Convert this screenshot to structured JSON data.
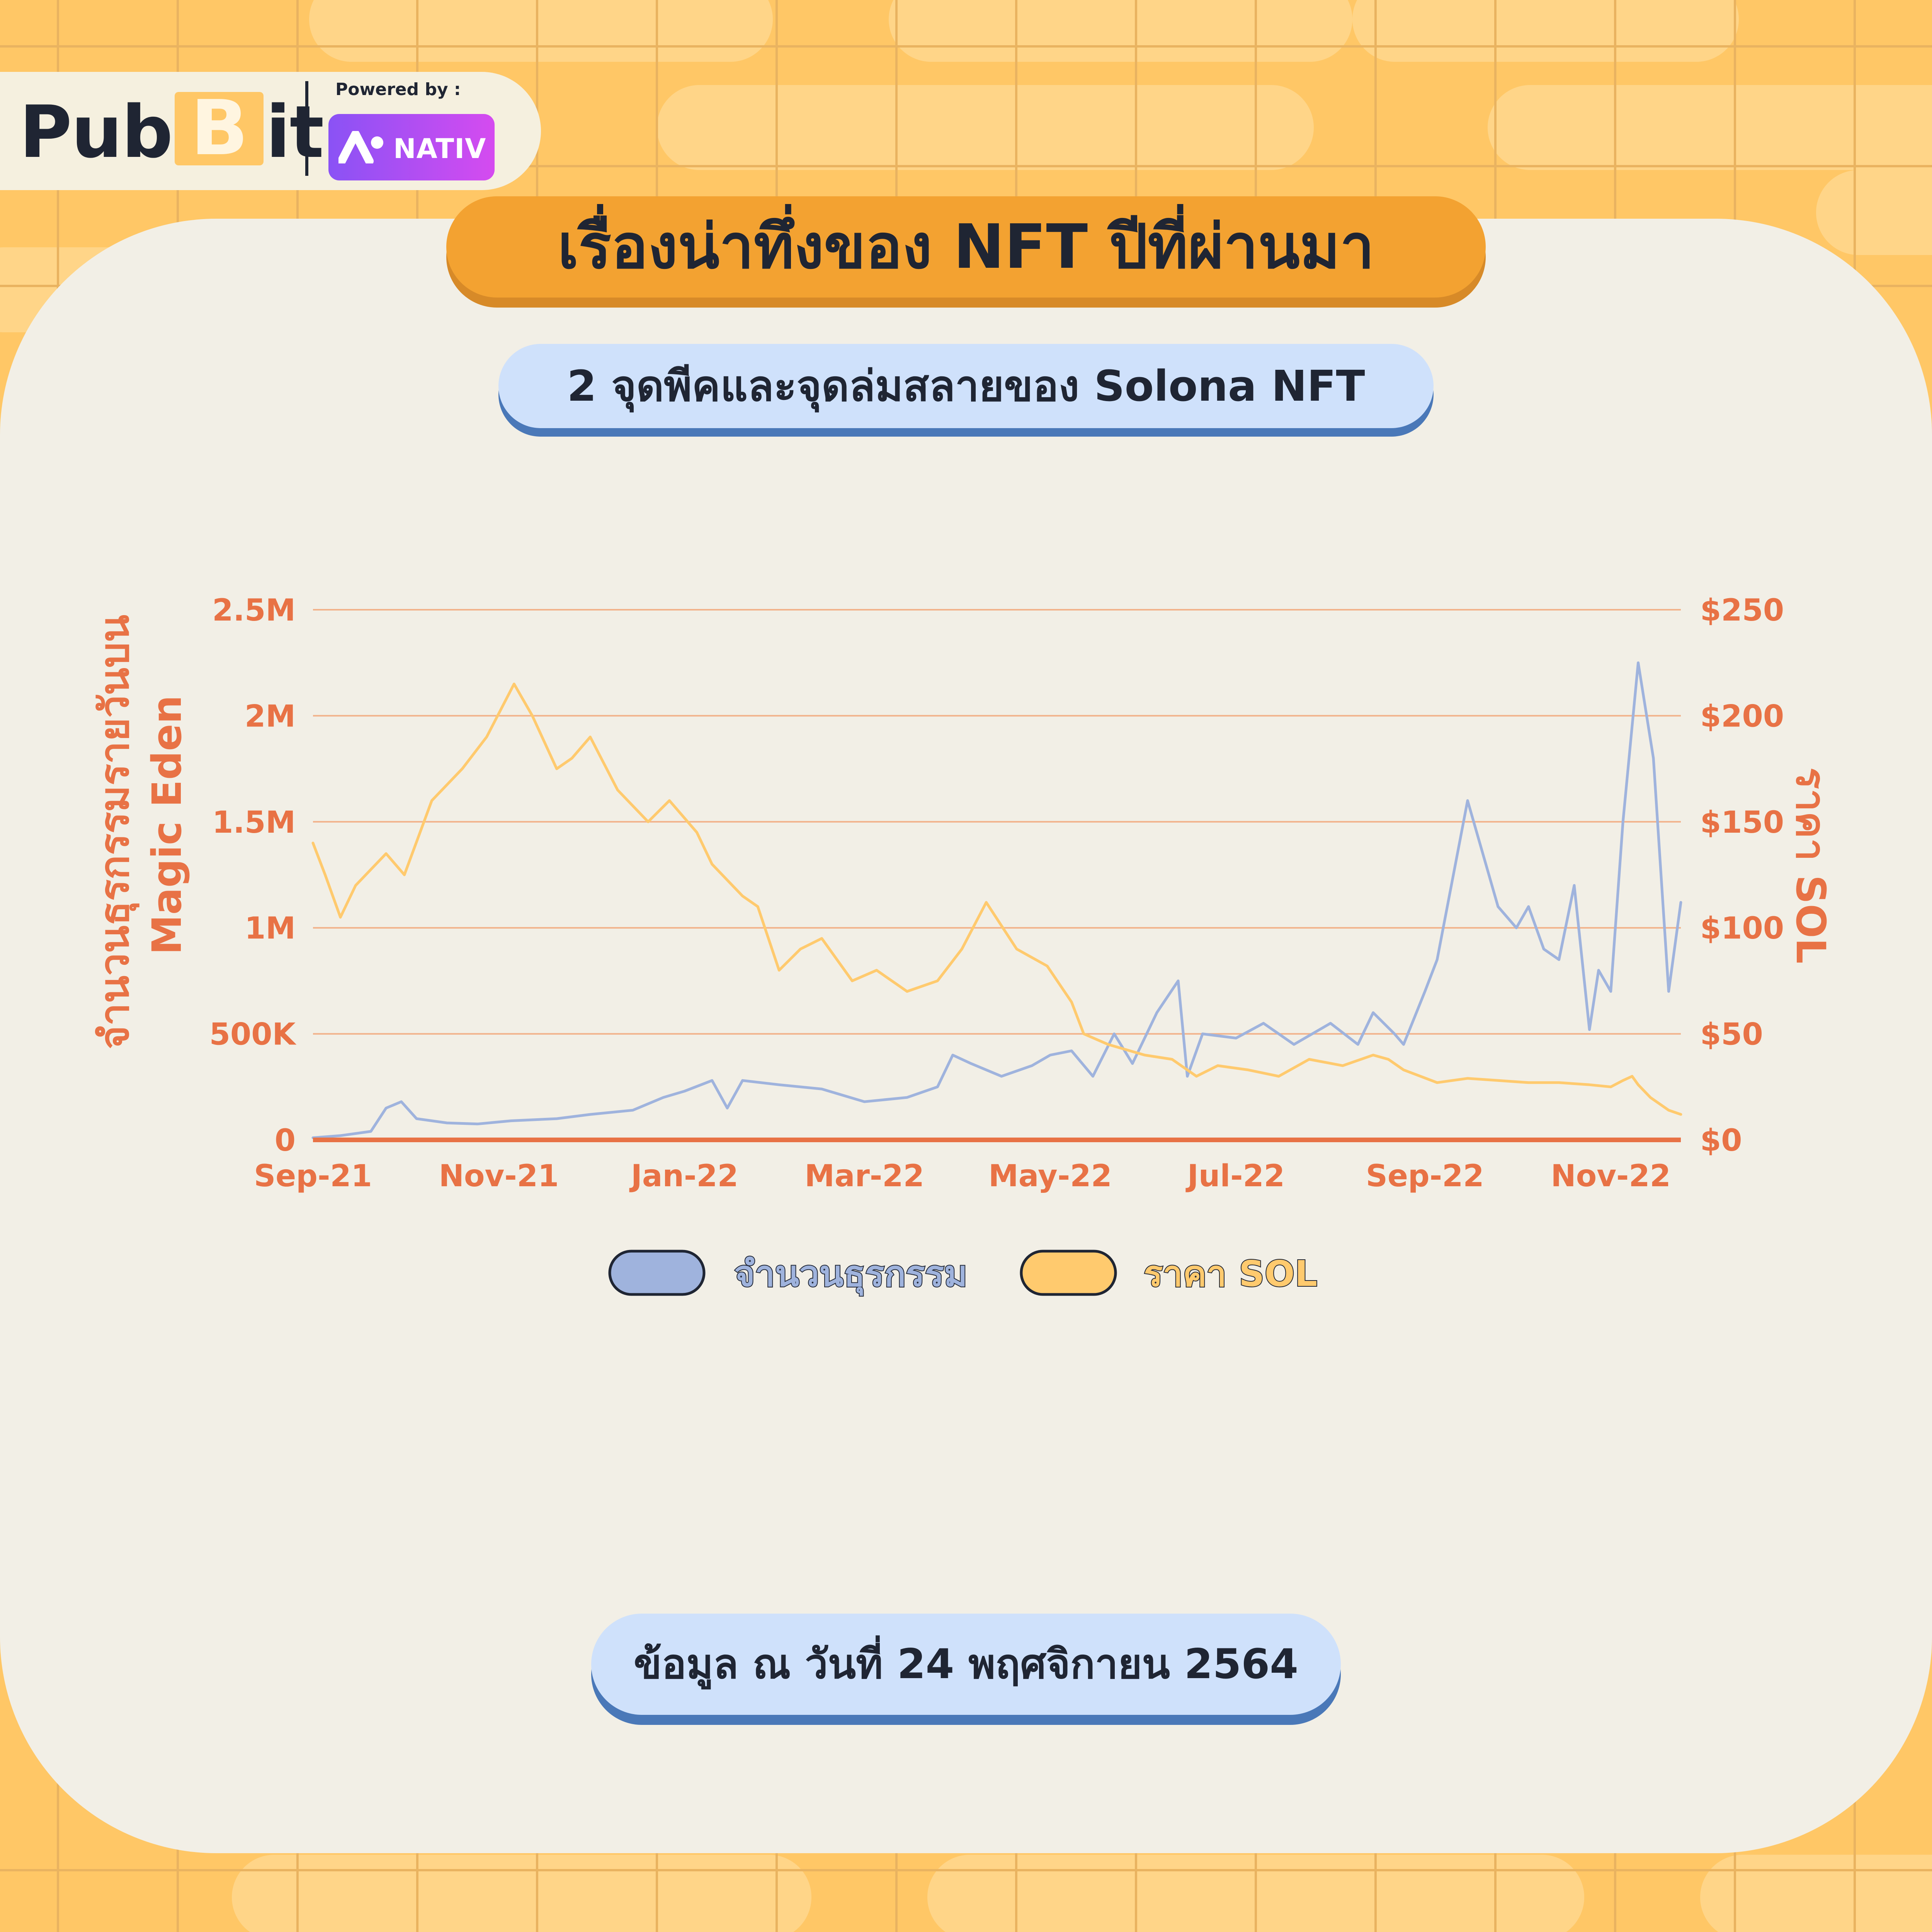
{
  "brand": {
    "logo": "PubBit",
    "logo_pre": "Pub",
    "logo_coin": "B",
    "logo_post": "it",
    "powered_by": "Powered by :",
    "partner": "NATIV"
  },
  "title": "เรื่องน่าทึ่งของ NFT ปีที่ผ่านมา",
  "subtitle": "2 จุดพีคและจุดล่มสลายของ Solona NFT",
  "footer_note": "ข้อมูล ณ วันที่ 24 พฤศจิกายน 2564",
  "colors": {
    "background": "#ffc766",
    "card": "#f2efe6",
    "axis_text": "#e87245",
    "transactions": "#9fb3dd",
    "sol_price": "#ffca6e",
    "title_pill": "#f3a231",
    "sub_pill": "#cfe1fb"
  },
  "chart_data": {
    "type": "line",
    "title": "2 จุดพีคและจุดล่มสลายของ Solona NFT",
    "ylabel_left": [
      "จำนวนธุรกรรมรายวันบน",
      "Magic Eden"
    ],
    "ylabel_right": "ราคา SOL",
    "y_left_ticks": [
      "0",
      "500K",
      "1M",
      "1.5M",
      "2M",
      "2.5M"
    ],
    "y_right_ticks": [
      "$0",
      "$50",
      "$100",
      "$150",
      "$200",
      "$250"
    ],
    "ylim_left": [
      0,
      2500000
    ],
    "ylim_right": [
      0,
      250
    ],
    "x_ticks": [
      "Sep-21",
      "Nov-21",
      "Jan-22",
      "Mar-22",
      "May-22",
      "Jul-22",
      "Sep-22",
      "Nov-22"
    ],
    "grid": true,
    "legend_position": "bottom",
    "series": [
      {
        "name": "จำนวนธุรกรรม",
        "axis": "left",
        "color": "#9fb3dd",
        "x": [
          "2021-09-01",
          "2021-09-10",
          "2021-09-20",
          "2021-09-25",
          "2021-09-30",
          "2021-10-05",
          "2021-10-15",
          "2021-10-25",
          "2021-11-05",
          "2021-11-20",
          "2021-12-01",
          "2021-12-15",
          "2021-12-25",
          "2022-01-01",
          "2022-01-10",
          "2022-01-15",
          "2022-01-20",
          "2022-02-01",
          "2022-02-15",
          "2022-03-01",
          "2022-03-15",
          "2022-03-25",
          "2022-03-30",
          "2022-04-05",
          "2022-04-15",
          "2022-04-25",
          "2022-05-01",
          "2022-05-08",
          "2022-05-15",
          "2022-05-22",
          "2022-05-28",
          "2022-06-05",
          "2022-06-12",
          "2022-06-15",
          "2022-06-20",
          "2022-07-01",
          "2022-07-10",
          "2022-07-20",
          "2022-08-01",
          "2022-08-10",
          "2022-08-15",
          "2022-08-22",
          "2022-08-25",
          "2022-09-01",
          "2022-09-05",
          "2022-09-15",
          "2022-09-25",
          "2022-10-01",
          "2022-10-05",
          "2022-10-10",
          "2022-10-15",
          "2022-10-20",
          "2022-10-25",
          "2022-10-28",
          "2022-11-01",
          "2022-11-05",
          "2022-11-10",
          "2022-11-15",
          "2022-11-20",
          "2022-11-24"
        ],
        "values": [
          10000,
          20000,
          40000,
          150000,
          180000,
          100000,
          80000,
          75000,
          90000,
          100000,
          120000,
          140000,
          200000,
          230000,
          280000,
          150000,
          280000,
          260000,
          240000,
          180000,
          200000,
          250000,
          400000,
          360000,
          300000,
          350000,
          400000,
          420000,
          300000,
          500000,
          360000,
          600000,
          750000,
          300000,
          500000,
          480000,
          550000,
          450000,
          550000,
          450000,
          600000,
          500000,
          450000,
          700000,
          850000,
          1600000,
          1100000,
          1000000,
          1100000,
          900000,
          850000,
          1200000,
          520000,
          800000,
          700000,
          1500000,
          2250000,
          1800000,
          700000,
          1120000
        ]
      },
      {
        "name": "ราคา SOL",
        "axis": "right",
        "color": "#ffca6e",
        "x": [
          "2021-09-01",
          "2021-09-05",
          "2021-09-10",
          "2021-09-15",
          "2021-09-25",
          "2021-10-01",
          "2021-10-10",
          "2021-10-20",
          "2021-10-28",
          "2021-11-06",
          "2021-11-12",
          "2021-11-20",
          "2021-11-25",
          "2021-12-01",
          "2021-12-10",
          "2021-12-20",
          "2021-12-27",
          "2022-01-05",
          "2022-01-10",
          "2022-01-20",
          "2022-01-25",
          "2022-02-01",
          "2022-02-08",
          "2022-02-15",
          "2022-02-25",
          "2022-03-05",
          "2022-03-15",
          "2022-03-25",
          "2022-04-02",
          "2022-04-10",
          "2022-04-20",
          "2022-04-30",
          "2022-05-08",
          "2022-05-12",
          "2022-05-20",
          "2022-06-01",
          "2022-06-10",
          "2022-06-18",
          "2022-06-25",
          "2022-07-05",
          "2022-07-15",
          "2022-07-25",
          "2022-08-05",
          "2022-08-15",
          "2022-08-20",
          "2022-08-25",
          "2022-09-05",
          "2022-09-15",
          "2022-09-25",
          "2022-10-05",
          "2022-10-15",
          "2022-10-25",
          "2022-11-01",
          "2022-11-05",
          "2022-11-08",
          "2022-11-10",
          "2022-11-14",
          "2022-11-20",
          "2022-11-24"
        ],
        "values": [
          140,
          125,
          105,
          120,
          135,
          125,
          160,
          175,
          190,
          215,
          200,
          175,
          180,
          190,
          165,
          150,
          160,
          145,
          130,
          115,
          110,
          80,
          90,
          95,
          75,
          80,
          70,
          75,
          90,
          112,
          90,
          82,
          65,
          50,
          45,
          40,
          38,
          30,
          35,
          33,
          30,
          38,
          35,
          40,
          38,
          33,
          27,
          29,
          28,
          27,
          27,
          26,
          25,
          28,
          30,
          26,
          20,
          14,
          12
        ]
      }
    ]
  }
}
